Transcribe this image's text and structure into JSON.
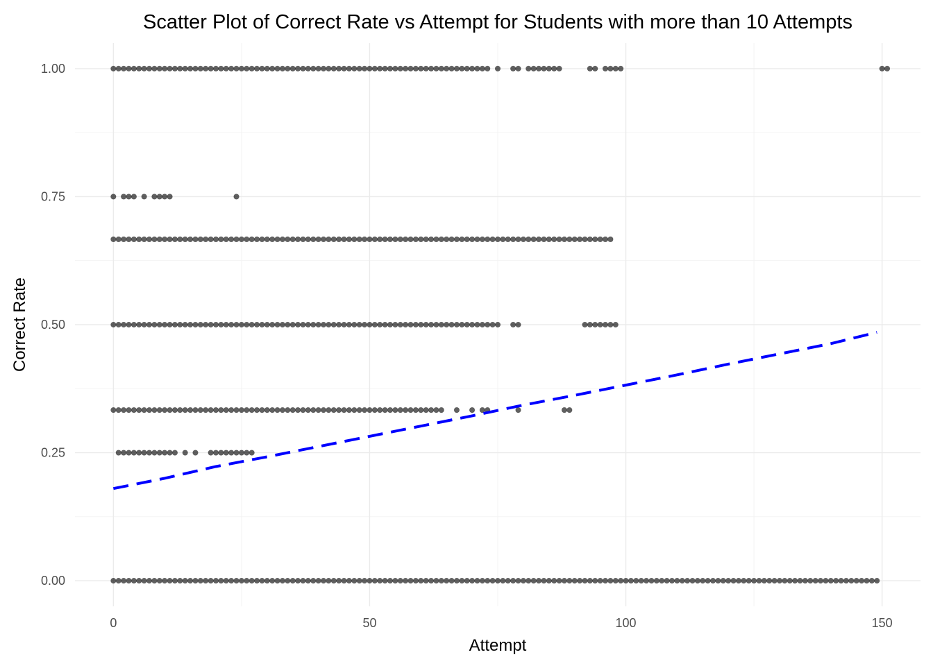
{
  "chart_data": {
    "type": "scatter",
    "title": "Scatter Plot of Correct Rate vs Attempt for Students with more than 10 Attempts",
    "xlabel": "Attempt",
    "ylabel": "Correct Rate",
    "xlim": [
      -7.5,
      157.5
    ],
    "ylim": [
      -0.05,
      1.05
    ],
    "x_ticks": [
      0,
      50,
      100,
      150
    ],
    "x_tick_labels": [
      "0",
      "50",
      "100",
      "150"
    ],
    "y_ticks": [
      0,
      0.25,
      0.5,
      0.75,
      1
    ],
    "y_tick_labels": [
      "0.00",
      "0.25",
      "0.50",
      "0.75",
      "1.00"
    ],
    "grid": true,
    "point_color": "#000000",
    "point_alpha": 0.6,
    "series": [
      {
        "type": "scatter",
        "rows": [
          {
            "y": 1.0,
            "x_ranges": [
              [
                0,
                67
              ]
            ],
            "x": [
              68,
              69,
              70,
              71,
              72,
              73,
              75,
              78,
              79,
              81,
              82,
              83,
              84,
              85,
              86,
              87,
              93,
              94,
              96,
              97,
              98,
              99,
              150,
              151
            ]
          },
          {
            "y": 0.75,
            "x": [
              0,
              2,
              3,
              4,
              6,
              8,
              9,
              10,
              11,
              24
            ]
          },
          {
            "y": 0.6667,
            "x_ranges": [
              [
                0,
                97
              ]
            ]
          },
          {
            "y": 0.5,
            "x_ranges": [
              [
                0,
                75
              ]
            ],
            "x": [
              78,
              79,
              92,
              93,
              94,
              95,
              96,
              97,
              98
            ]
          },
          {
            "y": 0.3333,
            "x_ranges": [
              [
                0,
                64
              ]
            ],
            "x": [
              67,
              70,
              72,
              73,
              79,
              88,
              89
            ]
          },
          {
            "y": 0.25,
            "x_ranges": [
              [
                1,
                12
              ]
            ],
            "x": [
              14,
              16,
              19,
              20,
              21,
              22,
              23,
              24,
              25,
              26,
              27
            ]
          },
          {
            "y": 0.0,
            "x_ranges": [
              [
                0,
                149
              ]
            ]
          }
        ]
      },
      {
        "type": "line",
        "style": "dashed",
        "color": "#0000ff",
        "x": [
          0,
          10,
          20,
          30,
          40,
          50,
          60,
          70,
          80,
          90,
          100,
          110,
          120,
          130,
          140,
          149
        ],
        "y": [
          0.18,
          0.2,
          0.223,
          0.242,
          0.262,
          0.282,
          0.302,
          0.322,
          0.343,
          0.362,
          0.382,
          0.402,
          0.423,
          0.443,
          0.463,
          0.485
        ]
      }
    ]
  }
}
